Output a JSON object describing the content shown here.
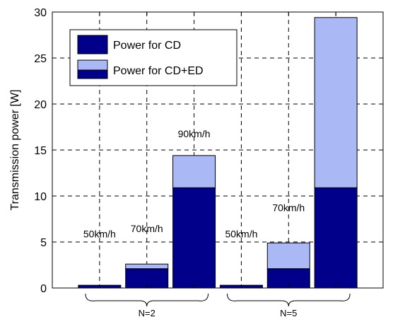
{
  "chart_data": {
    "type": "bar",
    "stacked": true,
    "ylabel": "Transmission power [W]",
    "ylim": [
      0,
      30
    ],
    "yticks": [
      0,
      5,
      10,
      15,
      20,
      25,
      30
    ],
    "grid": true,
    "legend_placement": "top-left",
    "bars": [
      {
        "group": "N=2",
        "label": "50km/h",
        "cd": 0.3,
        "ed": 0.0
      },
      {
        "group": "N=2",
        "label": "70km/h",
        "cd": 2.1,
        "ed": 0.5
      },
      {
        "group": "N=2",
        "label": "90km/h",
        "cd": 10.9,
        "ed": 3.5
      },
      {
        "group": "N=5",
        "label": "50km/h",
        "cd": 0.3,
        "ed": 0.0
      },
      {
        "group": "N=5",
        "label": "70km/h",
        "cd": 2.1,
        "ed": 2.8
      },
      {
        "group": "N=5",
        "label": "90km/h",
        "cd": 10.9,
        "ed": 18.5
      }
    ],
    "series": [
      {
        "name": "Power for CD",
        "color": "#00008b"
      },
      {
        "name": "Power for CD+ED",
        "color": "#aab9f5"
      }
    ],
    "groups": [
      "N=2",
      "N=5"
    ]
  }
}
